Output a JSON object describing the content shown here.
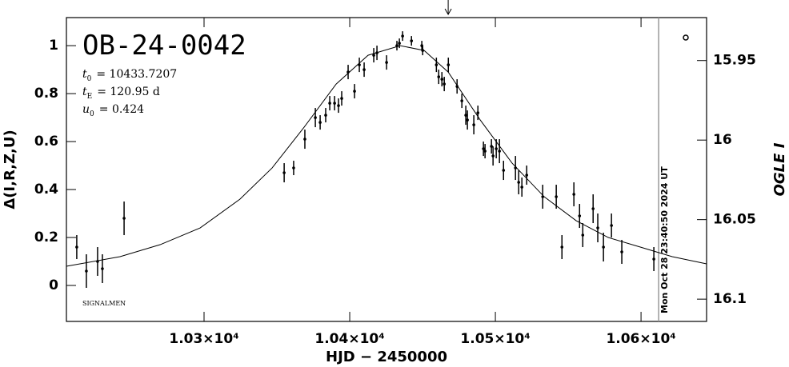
{
  "chart_data": {
    "type": "scatter",
    "title": "OB-24-0042",
    "params": [
      {
        "var": "t",
        "sub": "0",
        "rest": "= 10433.7207"
      },
      {
        "var": "t",
        "sub": "E",
        "rest": "= 120.95 d"
      },
      {
        "var": "u",
        "sub": "0",
        "rest": "= 0.424"
      }
    ],
    "footer_note": "SIGNALMEN",
    "x_label": "HJD − 2450000",
    "y_label": "Δ(I,R,Z,U)",
    "y2_label": "OGLE I",
    "xlim": [
      10205.5,
      10645
    ],
    "xticks": [
      {
        "value": 10300,
        "label": "1.03×10⁴"
      },
      {
        "value": 10400,
        "label": "1.04×10⁴"
      },
      {
        "value": 10500,
        "label": "1.05×10⁴"
      },
      {
        "value": 10600,
        "label": "1.06×10⁴"
      }
    ],
    "ylim": [
      -0.15,
      1.117
    ],
    "yticks": [
      0,
      0.2,
      0.4,
      0.6,
      0.8,
      1
    ],
    "y2lim": [
      16.114,
      15.923
    ],
    "y2ticks": [
      15.95,
      16,
      16.05,
      16.1
    ],
    "color": "#000000",
    "x": [
      10212.6,
      10219.2,
      10226.9,
      10230.2,
      10245.1,
      10355,
      10361.5,
      10369.2,
      10376.4,
      10379.7,
      10383.5,
      10386.3,
      10389.6,
      10392.3,
      10394.5,
      10398.9,
      10403.3,
      10406.6,
      10409.9,
      10416.5,
      10418.7,
      10425.3,
      10432.4,
      10434.1,
      10436.3,
      10442.4,
      10449.5,
      10450.1,
      10459.5,
      10461.1,
      10463.3,
      10464.9,
      10467.7,
      10473.7,
      10477,
      10479.7,
      10480.8,
      10485.2,
      10488,
      10491.8,
      10492.9,
      10497.3,
      10498.4,
      10500.6,
      10502.8,
      10505.6,
      10513.8,
      10516,
      10518.2,
      10521.5,
      10532.5,
      10541.8,
      10545.7,
      10553.9,
      10557.8,
      10560,
      10567.1,
      10570.3,
      10574.2,
      10579.7,
      10586.8,
      10608.8
    ],
    "values": [
      0.16,
      0.06,
      0.1,
      0.07,
      0.28,
      0.47,
      0.49,
      0.61,
      0.7,
      0.68,
      0.71,
      0.76,
      0.76,
      0.75,
      0.78,
      0.89,
      0.81,
      0.92,
      0.9,
      0.96,
      0.97,
      0.93,
      1.0,
      1.01,
      1.04,
      1.02,
      1.0,
      0.98,
      0.92,
      0.87,
      0.86,
      0.84,
      0.92,
      0.83,
      0.77,
      0.71,
      0.69,
      0.67,
      0.72,
      0.57,
      0.56,
      0.58,
      0.54,
      0.57,
      0.56,
      0.48,
      0.49,
      0.43,
      0.41,
      0.46,
      0.37,
      0.37,
      0.16,
      0.38,
      0.29,
      0.21,
      0.32,
      0.24,
      0.16,
      0.25,
      0.14,
      0.11
    ],
    "errors": [
      0.05,
      0.07,
      0.06,
      0.06,
      0.07,
      0.04,
      0.03,
      0.04,
      0.04,
      0.03,
      0.03,
      0.03,
      0.03,
      0.03,
      0.03,
      0.03,
      0.03,
      0.03,
      0.03,
      0.03,
      0.03,
      0.03,
      0.02,
      0.02,
      0.02,
      0.02,
      0.02,
      0.02,
      0.03,
      0.03,
      0.03,
      0.03,
      0.03,
      0.03,
      0.03,
      0.04,
      0.04,
      0.04,
      0.03,
      0.03,
      0.03,
      0.03,
      0.04,
      0.04,
      0.05,
      0.04,
      0.05,
      0.05,
      0.04,
      0.04,
      0.05,
      0.05,
      0.05,
      0.05,
      0.05,
      0.05,
      0.06,
      0.06,
      0.06,
      0.05,
      0.05,
      0.05
    ],
    "model": {
      "x": [
        10205.5,
        10242.3,
        10269.8,
        10297.3,
        10324.7,
        10346.7,
        10368.7,
        10390.7,
        10412.6,
        10434.6,
        10451.1,
        10467.6,
        10489.6,
        10511.5,
        10533.5,
        10555.5,
        10577.5,
        10599.5,
        10621.4,
        10645
      ],
      "values": [
        0.08,
        0.12,
        0.17,
        0.24,
        0.36,
        0.49,
        0.66,
        0.84,
        0.96,
        1.0,
        0.98,
        0.89,
        0.69,
        0.51,
        0.37,
        0.27,
        0.2,
        0.16,
        0.12,
        0.09
      ]
    },
    "now_line": {
      "x": 10612.1,
      "label": "Mon Oct 28 23:40:50 2024 UT",
      "color": "#999999"
    },
    "arrow_x": 10467.6
  }
}
